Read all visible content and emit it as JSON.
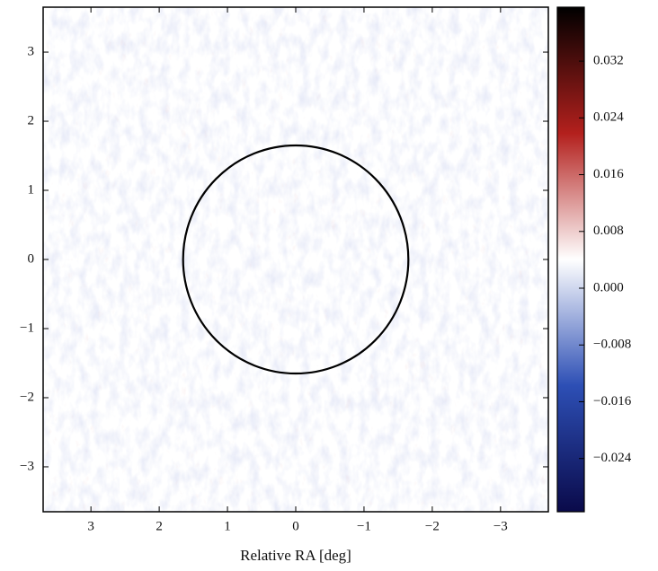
{
  "chart_data": {
    "type": "image",
    "xlabel": "Relative RA [deg]",
    "xlim": [
      3.7,
      -3.7
    ],
    "ylim": [
      -3.65,
      3.65
    ],
    "xticks": [
      3,
      2,
      1,
      0,
      {
        "value": -1,
        "label": "−1"
      },
      {
        "value": -2,
        "label": "−2"
      },
      {
        "value": -3,
        "label": "−3"
      }
    ],
    "yticks": [
      {
        "value": -3,
        "label": "−3"
      },
      {
        "value": -2,
        "label": "−2"
      },
      {
        "value": -1,
        "label": "−1"
      },
      0,
      1,
      2,
      3
    ],
    "circle": {
      "center": [
        0,
        0
      ],
      "radius": 1.65,
      "color": "#000000"
    },
    "colorbar": {
      "clim": [
        -0.0315,
        0.0396
      ],
      "cmap_colors": [
        "#0a0a4a",
        "#2d4fb5",
        "#ffffff",
        "#b3201d",
        "#000000"
      ],
      "ticks": [
        {
          "value": -0.024,
          "label": "−0.024"
        },
        {
          "value": -0.016,
          "label": "−0.016"
        },
        {
          "value": -0.008,
          "label": "−0.008"
        },
        {
          "value": 0,
          "label": "0.000"
        },
        0.008,
        0.016,
        0.024,
        0.032
      ]
    }
  }
}
